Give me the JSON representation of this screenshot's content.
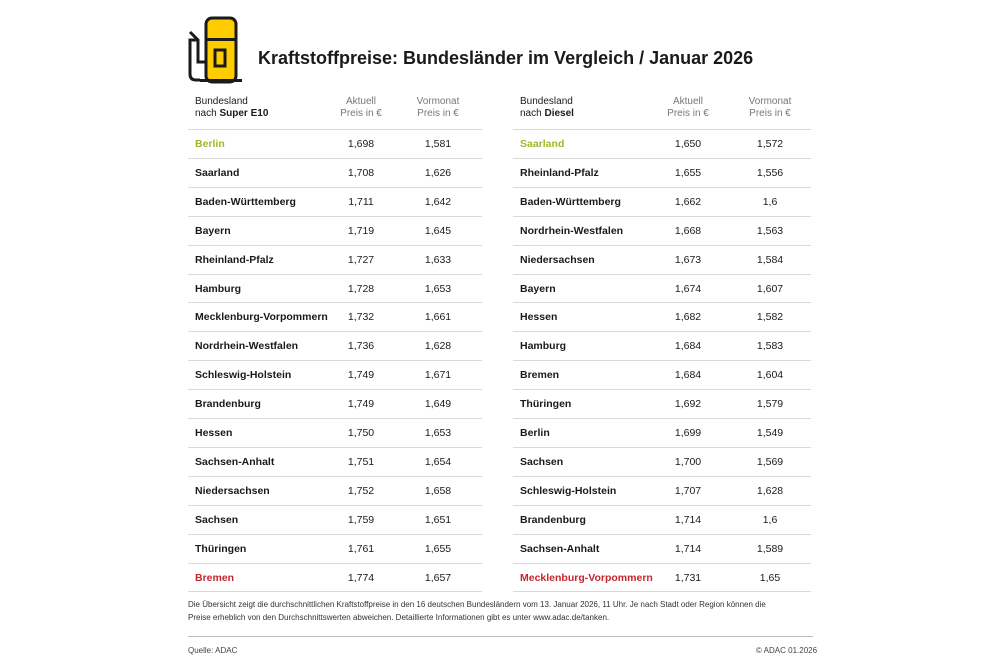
{
  "header": {
    "title": "Kraftstoffpreise: Bundesländer im Vergleich / Januar 2026"
  },
  "tables": [
    {
      "columns": {
        "name_line1": "Bundesland",
        "name_prefix": "nach",
        "name_fuel": "Super E10",
        "current_line1": "Aktuell",
        "current_line2": "Preis in €",
        "previous_line1": "Vormonat",
        "previous_line2": "Preis in €"
      },
      "rows": [
        [
          "Berlin",
          "1,698",
          "1,581"
        ],
        [
          "Saarland",
          "1,708",
          "1,626"
        ],
        [
          "Baden-Württemberg",
          "1,711",
          "1,642"
        ],
        [
          "Bayern",
          "1,719",
          "1,645"
        ],
        [
          "Rheinland-Pfalz",
          "1,727",
          "1,633"
        ],
        [
          "Hamburg",
          "1,728",
          "1,653"
        ],
        [
          "Mecklenburg-Vorpommern",
          "1,732",
          "1,661"
        ],
        [
          "Nordrhein-Westfalen",
          "1,736",
          "1,628"
        ],
        [
          "Schleswig-Holstein",
          "1,749",
          "1,671"
        ],
        [
          "Brandenburg",
          "1,749",
          "1,649"
        ],
        [
          "Hessen",
          "1,750",
          "1,653"
        ],
        [
          "Sachsen-Anhalt",
          "1,751",
          "1,654"
        ],
        [
          "Niedersachsen",
          "1,752",
          "1,658"
        ],
        [
          "Sachsen",
          "1,759",
          "1,651"
        ],
        [
          "Thüringen",
          "1,761",
          "1,655"
        ],
        [
          "Bremen",
          "1,774",
          "1,657"
        ]
      ]
    },
    {
      "columns": {
        "name_line1": "Bundesland",
        "name_prefix": "nach",
        "name_fuel": "Diesel",
        "current_line1": "Aktuell",
        "current_line2": "Preis in €",
        "previous_line1": "Vormonat",
        "previous_line2": "Preis in €"
      },
      "rows": [
        [
          "Saarland",
          "1,650",
          "1,572"
        ],
        [
          "Rheinland-Pfalz",
          "1,655",
          "1,556"
        ],
        [
          "Baden-Württemberg",
          "1,662",
          "1,6"
        ],
        [
          "Nordrhein-Westfalen",
          "1,668",
          "1,563"
        ],
        [
          "Niedersachsen",
          "1,673",
          "1,584"
        ],
        [
          "Bayern",
          "1,674",
          "1,607"
        ],
        [
          "Hessen",
          "1,682",
          "1,582"
        ],
        [
          "Hamburg",
          "1,684",
          "1,583"
        ],
        [
          "Bremen",
          "1,684",
          "1,604"
        ],
        [
          "Thüringen",
          "1,692",
          "1,579"
        ],
        [
          "Berlin",
          "1,699",
          "1,549"
        ],
        [
          "Sachsen",
          "1,700",
          "1,569"
        ],
        [
          "Schleswig-Holstein",
          "1,707",
          "1,628"
        ],
        [
          "Brandenburg",
          "1,714",
          "1,6"
        ],
        [
          "Sachsen-Anhalt",
          "1,714",
          "1,589"
        ],
        [
          "Mecklenburg-Vorpommern",
          "1,731",
          "1,65"
        ]
      ]
    }
  ],
  "footer": {
    "note": "Die Übersicht zeigt die durchschnittlichen Kraftstoffpreise in den 16 deutschen Bundesländern vom 13. Januar 2026, 11 Uhr. Je nach Stadt oder Region können die Preise erheblich von den Durchschnittswerten abweichen. Detaillierte Informationen gibt es unter www.adac.de/tanken.",
    "source": "Quelle: ADAC",
    "copyright": "© ADAC 01.2026"
  }
}
